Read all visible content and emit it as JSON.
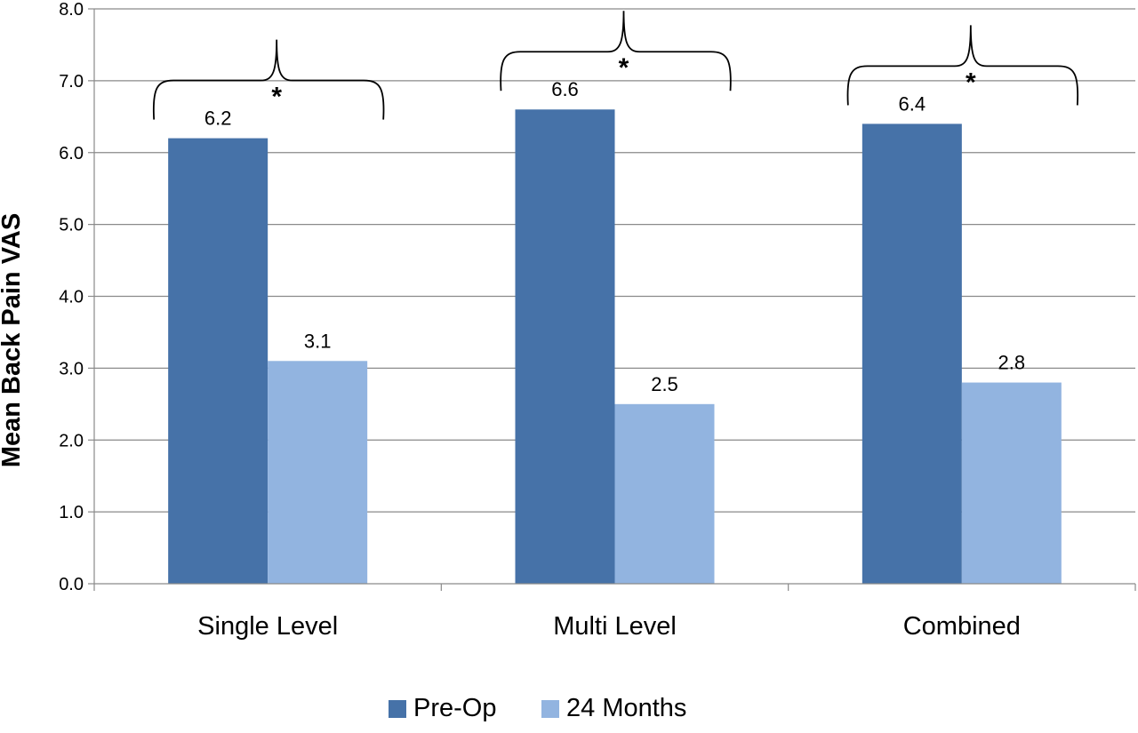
{
  "chart_data": {
    "type": "bar",
    "title": "",
    "xlabel": "",
    "ylabel": "Mean Back Pain VAS",
    "ylim": [
      0,
      8
    ],
    "yticks": [
      "0.0",
      "1.0",
      "2.0",
      "3.0",
      "4.0",
      "5.0",
      "6.0",
      "7.0",
      "8.0"
    ],
    "categories": [
      "Single Level",
      "Multi Level",
      "Combined"
    ],
    "series": [
      {
        "name": "Pre-Op",
        "color": "#4672A8",
        "values": [
          6.2,
          6.6,
          6.4
        ],
        "labels": [
          "6.2",
          "6.6",
          "6.4"
        ]
      },
      {
        "name": "24 Months",
        "color": "#92B4E0",
        "values": [
          3.1,
          2.5,
          2.8
        ],
        "labels": [
          "3.1",
          "2.5",
          "2.8"
        ]
      }
    ],
    "significance_marker": "*",
    "grid": true,
    "legend_position": "bottom"
  }
}
